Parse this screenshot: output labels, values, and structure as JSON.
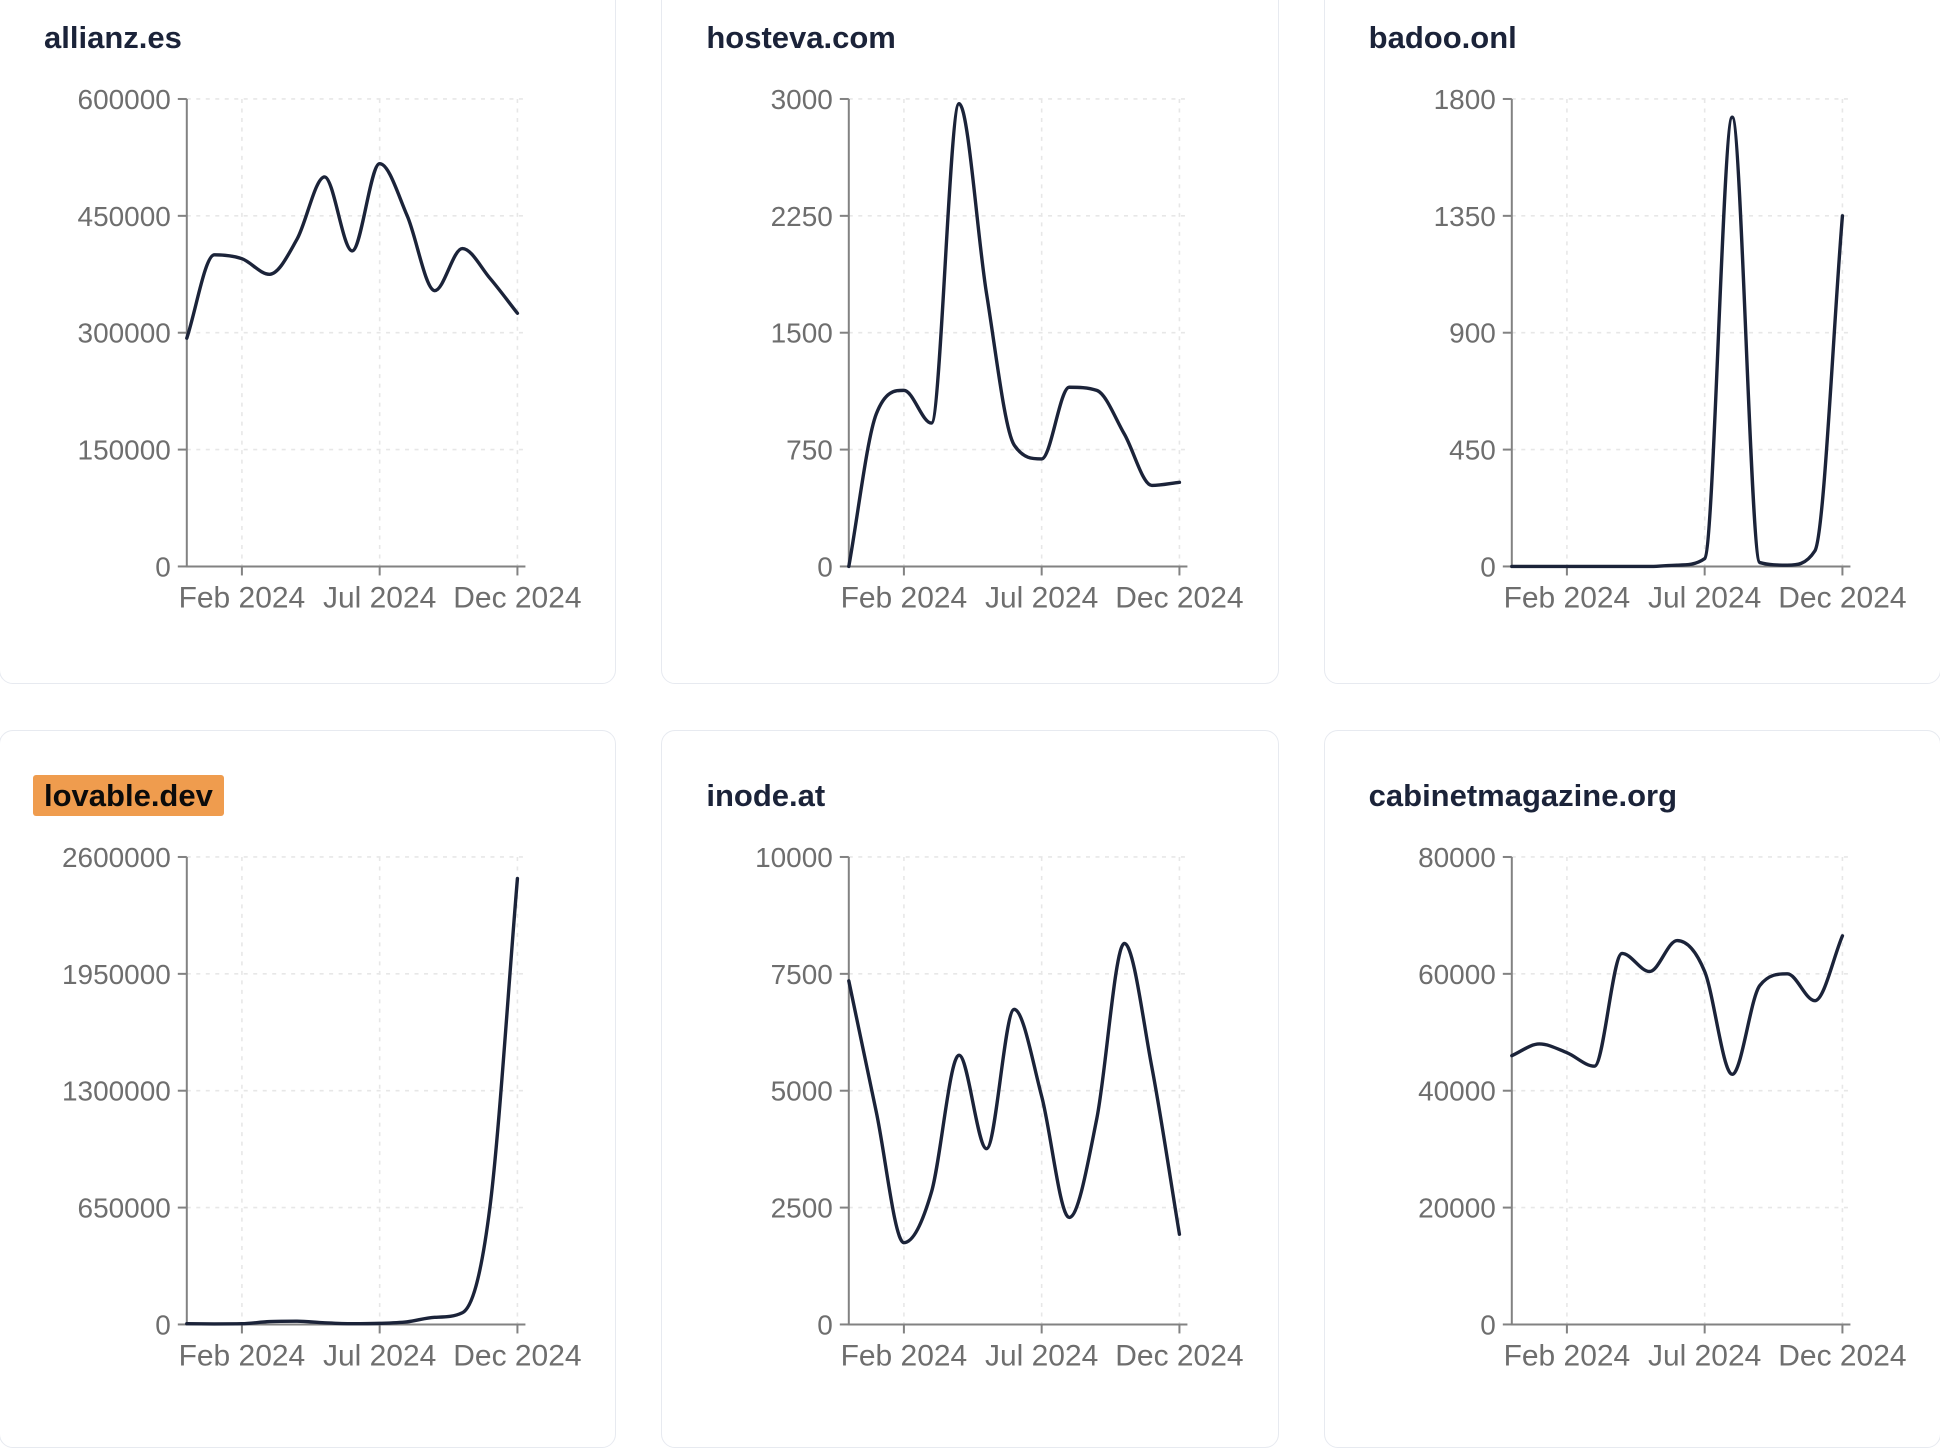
{
  "style": {
    "background": "#ffffff",
    "card_border": "#e7eaf0",
    "title_color": "#1b2339",
    "highlight_color": "#ef9c4e",
    "highlight_text_color": "#0b0b0b",
    "line_color": "#1b2339",
    "axis_color": "#828282",
    "label_color": "#6e6e6e",
    "grid_color": "#e7e7e7"
  },
  "chart_data": [
    {
      "type": "line",
      "title": "allianz.es",
      "highlight": false,
      "x": [
        "Dec 2023",
        "Jan 2024",
        "Feb 2024",
        "Mar 2024",
        "Apr 2024",
        "May 2024",
        "Jun 2024",
        "Jul 2024",
        "Aug 2024",
        "Sep 2024",
        "Oct 2024",
        "Nov 2024",
        "Dec 2024"
      ],
      "values": [
        293000,
        400000,
        395000,
        375000,
        420000,
        500000,
        405000,
        517000,
        450000,
        354000,
        408000,
        370000,
        325000
      ],
      "ylim": [
        0,
        600000
      ],
      "y_ticks": [
        0,
        150000,
        300000,
        450000,
        600000
      ],
      "x_tick_labels": [
        "Feb 2024",
        "Jul 2024",
        "Dec 2024"
      ],
      "x_tick_month_index": [
        2,
        7,
        12
      ],
      "grid": "dashed"
    },
    {
      "type": "line",
      "title": "hosteva.com",
      "highlight": false,
      "x": [
        "Dec 2023",
        "Jan 2024",
        "Feb 2024",
        "Mar 2024",
        "Apr 2024",
        "May 2024",
        "Jun 2024",
        "Jul 2024",
        "Aug 2024",
        "Sep 2024",
        "Oct 2024",
        "Nov 2024",
        "Dec 2024"
      ],
      "values": [
        0,
        980,
        1130,
        920,
        2970,
        1750,
        780,
        690,
        1150,
        1130,
        850,
        520,
        540
      ],
      "ylim": [
        0,
        3000
      ],
      "y_ticks": [
        0,
        750,
        1500,
        2250,
        3000
      ],
      "x_tick_labels": [
        "Feb 2024",
        "Jul 2024",
        "Dec 2024"
      ],
      "x_tick_month_index": [
        2,
        7,
        12
      ],
      "grid": "dashed"
    },
    {
      "type": "line",
      "title": "badoo.onl",
      "highlight": false,
      "x": [
        "Dec 2023",
        "Jan 2024",
        "Feb 2024",
        "Mar 2024",
        "Apr 2024",
        "May 2024",
        "Jun 2024",
        "Jul 2024",
        "Aug 2024",
        "Sep 2024",
        "Oct 2024",
        "Nov 2024",
        "Dec 2024"
      ],
      "values": [
        0,
        0,
        0,
        0,
        0,
        0,
        5,
        30,
        1730,
        15,
        5,
        60,
        1350
      ],
      "ylim": [
        0,
        1800
      ],
      "y_ticks": [
        0,
        450,
        900,
        1350,
        1800
      ],
      "x_tick_labels": [
        "Feb 2024",
        "Jul 2024",
        "Dec 2024"
      ],
      "x_tick_month_index": [
        2,
        7,
        12
      ],
      "grid": "dashed"
    },
    {
      "type": "line",
      "title": "lovable.dev",
      "highlight": true,
      "x": [
        "Dec 2023",
        "Jan 2024",
        "Feb 2024",
        "Mar 2024",
        "Apr 2024",
        "May 2024",
        "Jun 2024",
        "Jul 2024",
        "Aug 2024",
        "Sep 2024",
        "Oct 2024",
        "Nov 2024",
        "Dec 2024"
      ],
      "values": [
        4000,
        3000,
        4000,
        16000,
        18000,
        9000,
        4000,
        6000,
        15000,
        40000,
        65000,
        650000,
        2480000
      ],
      "ylim": [
        0,
        2600000
      ],
      "y_ticks": [
        0,
        650000,
        1300000,
        1950000,
        2600000
      ],
      "x_tick_labels": [
        "Feb 2024",
        "Jul 2024",
        "Dec 2024"
      ],
      "x_tick_month_index": [
        2,
        7,
        12
      ],
      "grid": "dashed"
    },
    {
      "type": "line",
      "title": "inode.at",
      "highlight": false,
      "x": [
        "Dec 2023",
        "Jan 2024",
        "Feb 2024",
        "Mar 2024",
        "Apr 2024",
        "May 2024",
        "Jun 2024",
        "Jul 2024",
        "Aug 2024",
        "Sep 2024",
        "Oct 2024",
        "Nov 2024",
        "Dec 2024"
      ],
      "values": [
        7350,
        4540,
        1750,
        2830,
        5760,
        3760,
        6740,
        4880,
        2290,
        4400,
        8150,
        5500,
        1930
      ],
      "ylim": [
        0,
        10000
      ],
      "y_ticks": [
        0,
        2500,
        5000,
        7500,
        10000
      ],
      "x_tick_labels": [
        "Feb 2024",
        "Jul 2024",
        "Dec 2024"
      ],
      "x_tick_month_index": [
        2,
        7,
        12
      ],
      "grid": "dashed"
    },
    {
      "type": "line",
      "title": "cabinetmagazine.org",
      "highlight": false,
      "x": [
        "Dec 2023",
        "Jan 2024",
        "Feb 2024",
        "Mar 2024",
        "Apr 2024",
        "May 2024",
        "Jun 2024",
        "Jul 2024",
        "Aug 2024",
        "Sep 2024",
        "Oct 2024",
        "Nov 2024",
        "Dec 2024"
      ],
      "values": [
        46000,
        48000,
        46500,
        44200,
        63500,
        60400,
        65700,
        60400,
        42800,
        58000,
        60000,
        55400,
        66500
      ],
      "ylim": [
        0,
        80000
      ],
      "y_ticks": [
        0,
        20000,
        40000,
        60000,
        80000
      ],
      "x_tick_labels": [
        "Feb 2024",
        "Jul 2024",
        "Dec 2024"
      ],
      "x_tick_month_index": [
        2,
        7,
        12
      ],
      "grid": "dashed"
    }
  ]
}
